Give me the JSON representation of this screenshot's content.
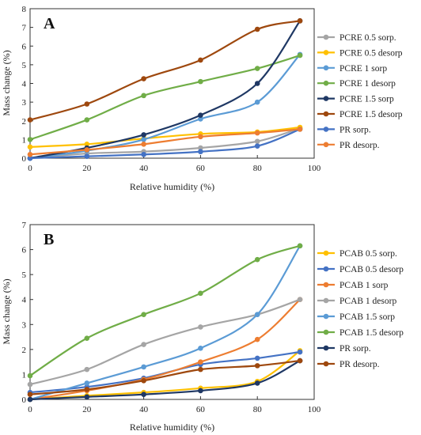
{
  "chart_data": [
    {
      "type": "line",
      "panel_label": "A",
      "xlabel": "Relative humidity (%)",
      "ylabel": "Mass change (%)",
      "xlim": [
        0,
        100
      ],
      "ylim": [
        0,
        8
      ],
      "xticks": [
        "0",
        "20",
        "40",
        "60",
        "80",
        "100"
      ],
      "yticks": [
        "0",
        "1",
        "2",
        "3",
        "4",
        "5",
        "6",
        "7",
        "8"
      ],
      "grid": false,
      "legend_position": "right",
      "x": [
        0,
        20,
        40,
        60,
        80,
        95
      ],
      "series": [
        {
          "name": "PCRE 0.5 sorp.",
          "color": "#a5a5a5",
          "values": [
            0.0,
            0.25,
            0.35,
            0.55,
            0.9,
            1.6
          ]
        },
        {
          "name": "PCRE 0.5 desorp",
          "color": "#ffc000",
          "values": [
            0.6,
            0.75,
            1.05,
            1.3,
            1.4,
            1.65
          ]
        },
        {
          "name": "PCRE 1 sorp",
          "color": "#5b9bd5",
          "values": [
            0.0,
            0.4,
            1.0,
            2.1,
            3.0,
            5.55
          ]
        },
        {
          "name": "PCRE 1 desorp",
          "color": "#70ad47",
          "values": [
            1.0,
            2.05,
            3.35,
            4.1,
            4.8,
            5.5
          ]
        },
        {
          "name": "PCRE 1.5 sorp",
          "color": "#1f3864",
          "values": [
            0.0,
            0.55,
            1.25,
            2.3,
            4.0,
            7.35
          ]
        },
        {
          "name": "PCRE 1.5 desorp",
          "color": "#9e480e",
          "values": [
            2.05,
            2.9,
            4.25,
            5.25,
            6.9,
            7.35
          ]
        },
        {
          "name": "PR sorp.",
          "color": "#4472c4",
          "values": [
            0.0,
            0.1,
            0.2,
            0.35,
            0.65,
            1.55
          ]
        },
        {
          "name": "PR desorp.",
          "color": "#ed7d31",
          "values": [
            0.2,
            0.45,
            0.75,
            1.15,
            1.35,
            1.55
          ]
        }
      ]
    },
    {
      "type": "line",
      "panel_label": "B",
      "xlabel": "Relative humidity (%)",
      "ylabel": "Mass change (%)",
      "xlim": [
        0,
        100
      ],
      "ylim": [
        0,
        7
      ],
      "xticks": [
        "0",
        "20",
        "40",
        "60",
        "80",
        "100"
      ],
      "yticks": [
        "0",
        "1",
        "2",
        "3",
        "4",
        "5",
        "6",
        "7"
      ],
      "grid": false,
      "legend_position": "right",
      "x": [
        0,
        20,
        40,
        60,
        80,
        95
      ],
      "series": [
        {
          "name": "PCAB 0.5 sorp.",
          "color": "#ffc000",
          "values": [
            0.0,
            0.15,
            0.28,
            0.45,
            0.72,
            1.95
          ]
        },
        {
          "name": "PCAB 0.5 desorp",
          "color": "#4472c4",
          "values": [
            0.28,
            0.5,
            0.85,
            1.4,
            1.65,
            1.9
          ]
        },
        {
          "name": "PCAB 1 sorp",
          "color": "#ed7d31",
          "values": [
            0.0,
            0.35,
            0.8,
            1.5,
            2.4,
            4.0
          ]
        },
        {
          "name": "PCAB 1 desorp",
          "color": "#a5a5a5",
          "values": [
            0.6,
            1.2,
            2.2,
            2.9,
            3.4,
            4.0
          ]
        },
        {
          "name": "PCAB 1.5 sorp",
          "color": "#5b9bd5",
          "values": [
            0.0,
            0.65,
            1.3,
            2.05,
            3.4,
            6.15
          ]
        },
        {
          "name": "PCAB 1.5 desorp",
          "color": "#70ad47",
          "values": [
            0.95,
            2.45,
            3.4,
            4.25,
            5.6,
            6.15
          ]
        },
        {
          "name": "PR sorp.",
          "color": "#1f3864",
          "values": [
            0.0,
            0.1,
            0.2,
            0.35,
            0.65,
            1.55
          ]
        },
        {
          "name": "PR desorp.",
          "color": "#9e480e",
          "values": [
            0.2,
            0.4,
            0.75,
            1.2,
            1.35,
            1.55
          ]
        }
      ]
    }
  ]
}
